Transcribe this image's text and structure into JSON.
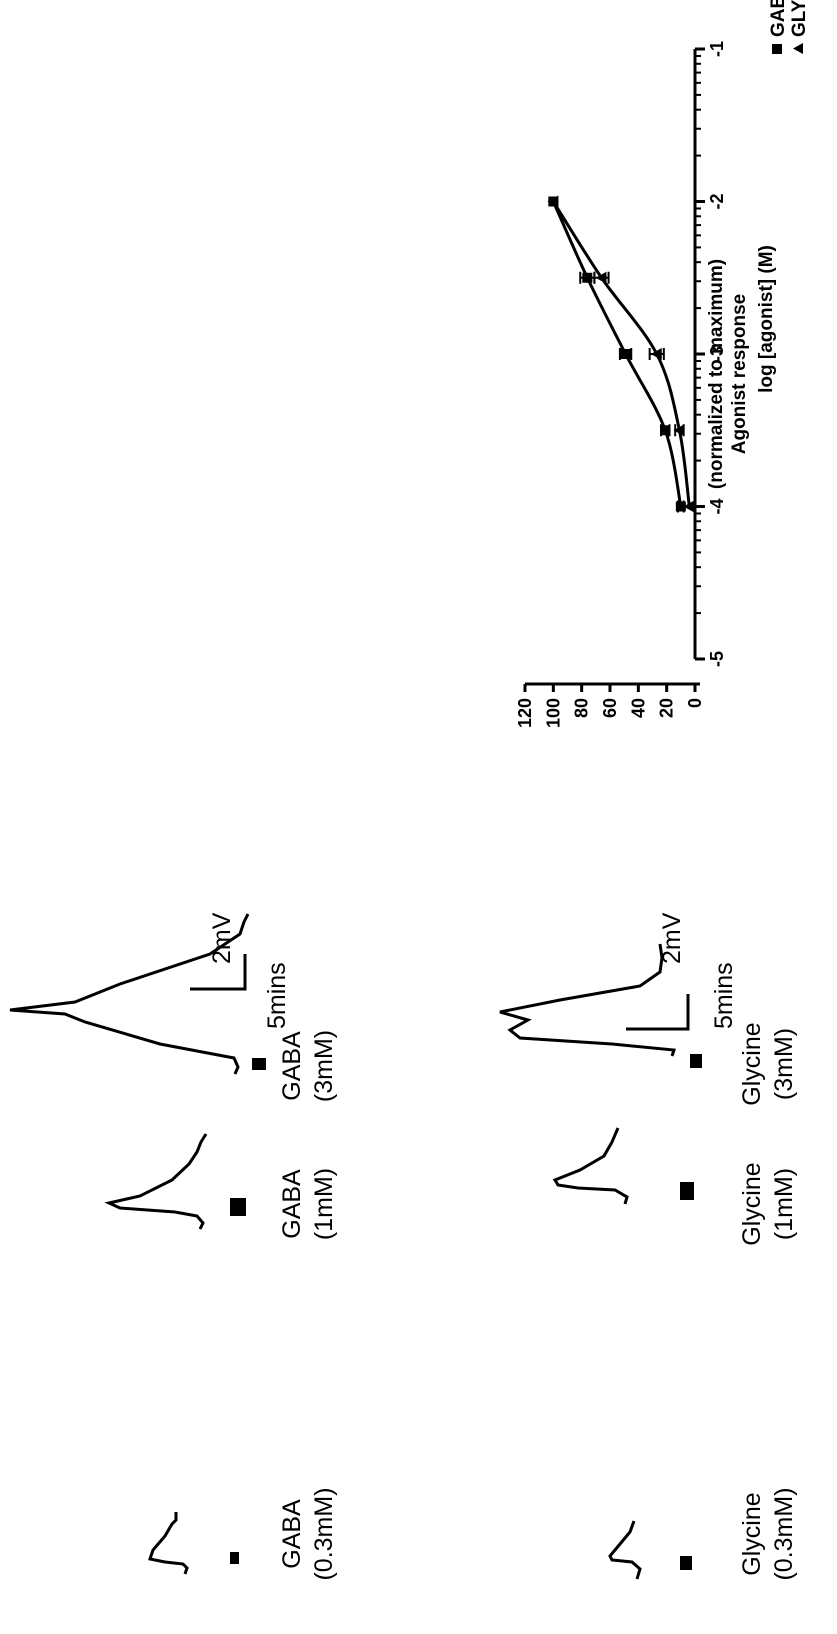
{
  "chart_data": [
    {
      "type": "line",
      "xlabel": "log [agonist] (M)",
      "ylabel": "Agonist response",
      "ylabel2": "(normalized to maximum)",
      "xlim": [
        -5,
        -1
      ],
      "ylim": [
        0,
        120
      ],
      "xticks": [
        "-5",
        "-4",
        "-3",
        "-2",
        "-1"
      ],
      "yticks": [
        "0",
        "20",
        "40",
        "60",
        "80",
        "100",
        "120"
      ],
      "legend_position": "top-right",
      "grid": false,
      "series": [
        {
          "name": "GABA",
          "marker": "square",
          "x": [
            -4,
            -3.5,
            -3,
            -2.5,
            -2
          ],
          "y": [
            10,
            21,
            49,
            76,
            100
          ],
          "err": [
            2,
            3,
            4,
            5,
            0
          ]
        },
        {
          "name": "GLYCINE",
          "marker": "triangle",
          "x": [
            -4,
            -3.5,
            -3,
            -2.5,
            -2
          ],
          "y": [
            4,
            11,
            27,
            66,
            100
          ],
          "err": [
            0,
            3,
            5,
            5,
            0
          ]
        }
      ]
    },
    {
      "type": "traces",
      "rows": [
        {
          "agent": "GABA",
          "traces": [
            {
              "name": "GABA",
              "dose": "(0.3mM)",
              "peak": 1.0
            },
            {
              "name": "GABA",
              "dose": "(1mM)",
              "peak": 2.7
            },
            {
              "name": "GABA",
              "dose": "(3mM)",
              "peak": 3.8
            }
          ],
          "scale_v": "2mV",
          "scale_t": "5mins"
        },
        {
          "agent": "Glycine",
          "traces": [
            {
              "name": "Glycine",
              "dose": "(0.3mM)",
              "peak": 0.6
            },
            {
              "name": "Glycine",
              "dose": "(1mM)",
              "peak": 2.3
            },
            {
              "name": "Glycine",
              "dose": "(3mM)",
              "peak": 3.2
            }
          ],
          "scale_v": "2mV",
          "scale_t": "5mins"
        }
      ]
    }
  ]
}
